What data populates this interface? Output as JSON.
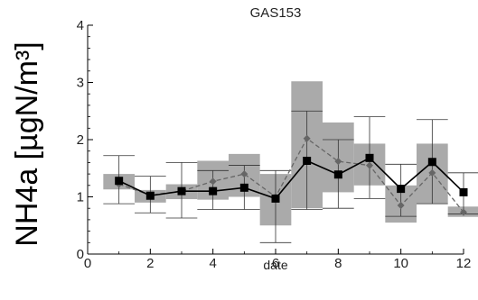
{
  "chart_data": {
    "type": "line",
    "title": "GAS153",
    "xlabel": "date",
    "ylabel": "NH4a [µgN/m³]",
    "xlim": [
      0,
      12
    ],
    "ylim": [
      0,
      4
    ],
    "xticks": [
      "0",
      "2",
      "4",
      "6",
      "8",
      "10",
      "12"
    ],
    "yticks": [
      "0",
      "1",
      "2",
      "3",
      "4"
    ],
    "x": [
      1,
      2,
      3,
      4,
      5,
      6,
      7,
      8,
      9,
      10,
      11,
      12
    ],
    "series": [
      {
        "style": "solid-black-square",
        "values": [
          1.28,
          1.02,
          1.1,
          1.1,
          1.16,
          0.97,
          1.63,
          1.39,
          1.68,
          1.14,
          1.61,
          1.08
        ],
        "error_low": [
          0.88,
          0.72,
          0.63,
          0.78,
          0.78,
          0.2,
          0.78,
          0.8,
          0.97,
          0.66,
          0.88,
          0.7
        ],
        "error_high": [
          1.72,
          1.36,
          1.6,
          1.46,
          1.55,
          1.46,
          2.5,
          2.0,
          2.4,
          1.57,
          2.35,
          1.42
        ]
      },
      {
        "style": "dashed-gray-diamond",
        "values": [
          1.22,
          1.03,
          1.1,
          1.27,
          1.4,
          1.0,
          2.02,
          1.62,
          1.55,
          0.85,
          1.42,
          0.73
        ],
        "range_low": [
          1.13,
          0.9,
          0.96,
          0.95,
          1.0,
          0.5,
          0.8,
          1.08,
          1.2,
          0.55,
          0.88,
          0.65
        ],
        "range_high": [
          1.4,
          1.12,
          1.22,
          1.63,
          1.75,
          1.4,
          3.02,
          2.3,
          1.93,
          1.2,
          1.93,
          0.83
        ]
      }
    ],
    "colors": {
      "box": "#aaaaaa",
      "line_primary": "#000000",
      "line_secondary": "#666666",
      "error_bar": "#333333"
    }
  }
}
